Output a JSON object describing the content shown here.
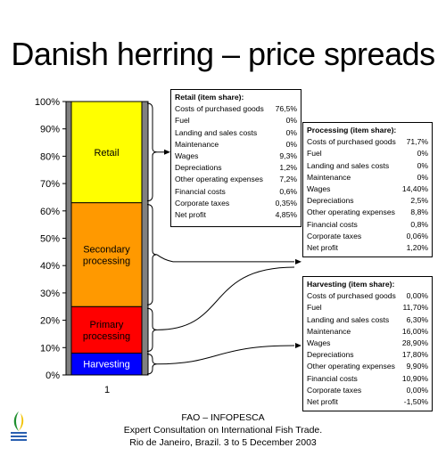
{
  "title": "Danish herring – price spreads",
  "chart_data": {
    "type": "bar",
    "stacked": true,
    "categories": [
      "1"
    ],
    "ylim": [
      0,
      100
    ],
    "yticks": [
      "0%",
      "10%",
      "20%",
      "30%",
      "40%",
      "50%",
      "60%",
      "70%",
      "80%",
      "90%",
      "100%"
    ],
    "series": [
      {
        "name": "Harvesting",
        "values": [
          8
        ]
      },
      {
        "name": "Primary processing",
        "values": [
          17
        ]
      },
      {
        "name": "Secondary processing",
        "values": [
          38
        ]
      },
      {
        "name": "Retail",
        "values": [
          37
        ]
      }
    ]
  },
  "colors": {
    "Harvesting": "#0000ff",
    "Primary processing": "#ff0000",
    "Secondary processing": "#ff9900",
    "Retail": "#ffff00",
    "bar_wall": "#808080"
  },
  "boxes": {
    "retail": {
      "title": "Retail (item share):",
      "rows": [
        [
          "Costs of purchased goods",
          "76,5%"
        ],
        [
          "Fuel",
          "0%"
        ],
        [
          "Landing and sales costs",
          "0%"
        ],
        [
          "Maintenance",
          "0%"
        ],
        [
          "Wages",
          "9,3%"
        ],
        [
          "Depreciations",
          "1,2%"
        ],
        [
          "Other operating expenses",
          "7,2%"
        ],
        [
          "Financial costs",
          "0,6%"
        ],
        [
          "Corporate taxes",
          "0,35%"
        ],
        [
          "Net profit",
          "4,85%"
        ]
      ]
    },
    "processing": {
      "title": "Processing (item share):",
      "rows": [
        [
          "Costs of purchased goods",
          "71,7%"
        ],
        [
          "Fuel",
          "0%"
        ],
        [
          "Landing and sales costs",
          "0%"
        ],
        [
          "Maintenance",
          "0%"
        ],
        [
          "Wages",
          "14,40%"
        ],
        [
          "Depreciations",
          "2,5%"
        ],
        [
          "Other operating expenses",
          "8,8%"
        ],
        [
          "Financial costs",
          "0,8%"
        ],
        [
          "Corporate taxes",
          "0,06%"
        ],
        [
          "Net profit",
          "1,20%"
        ]
      ]
    },
    "harvesting": {
      "title": "Harvesting (item share):",
      "rows": [
        [
          "Costs of purchased goods",
          "0,00%"
        ],
        [
          "Fuel",
          "11,70%"
        ],
        [
          "Landing and sales costs",
          "6,30%"
        ],
        [
          "Maintenance",
          "16,00%"
        ],
        [
          "Wages",
          "28,90%"
        ],
        [
          "Depreciations",
          "17,80%"
        ],
        [
          "Other operating expenses",
          "9,90%"
        ],
        [
          "Financial costs",
          "10,90%"
        ],
        [
          "Corporate taxes",
          "0,00%"
        ],
        [
          "Net profit",
          "-1,50%"
        ]
      ]
    }
  },
  "footer": {
    "line1": "FAO – INFOPESCA",
    "line2": "Expert Consultation on International Fish Trade.",
    "line3": "Rio de Janeiro, Brazil. 3 to 5 December 2003"
  }
}
